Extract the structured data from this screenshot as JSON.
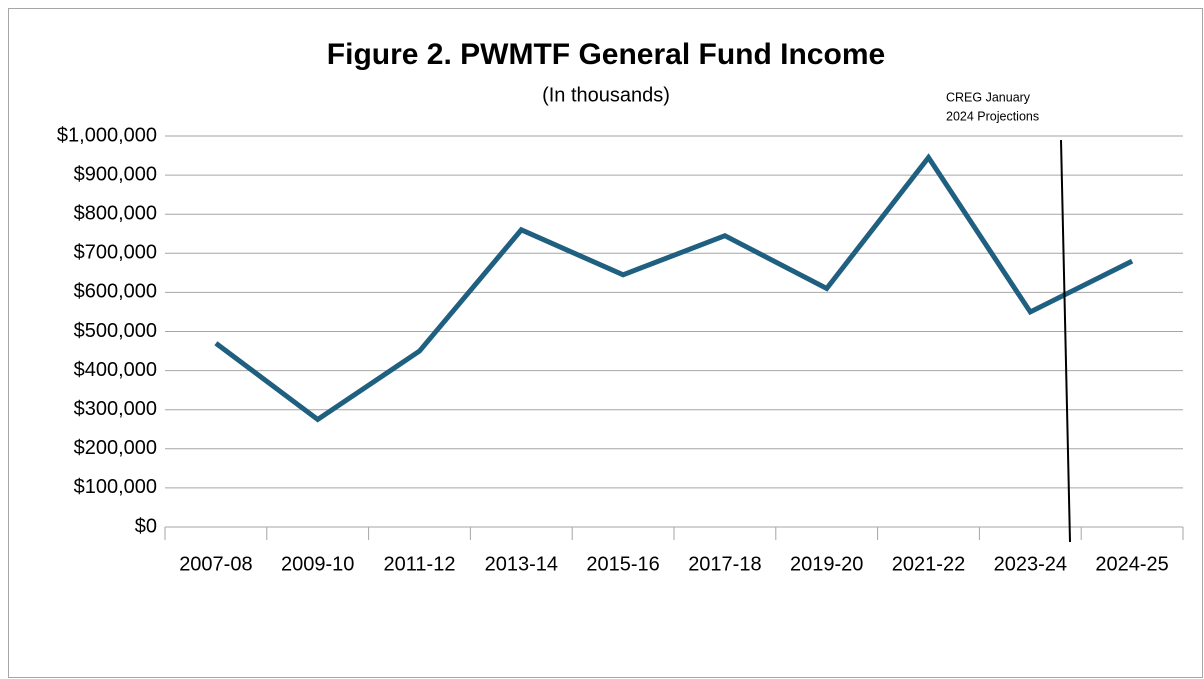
{
  "chart_data": {
    "type": "line",
    "title": "Figure 2. PWMTF General Fund Income",
    "subtitle": "(In thousands)",
    "annotation": [
      "CREG January",
      "2024 Projections"
    ],
    "categories": [
      "2007-08",
      "2009-10",
      "2011-12",
      "2013-14",
      "2015-16",
      "2017-18",
      "2019-20",
      "2021-22",
      "2023-24",
      "2024-25"
    ],
    "series": [
      {
        "name": "General Fund Income",
        "color": "#1f5f80",
        "values": [
          470000,
          275000,
          450000,
          760000,
          645000,
          745000,
          610000,
          945000,
          550000,
          680000
        ]
      }
    ],
    "ylim": [
      0,
      1000000
    ],
    "yticks": [
      {
        "value": 0,
        "label": "$0"
      },
      {
        "value": 100000,
        "label": "$100,000"
      },
      {
        "value": 200000,
        "label": "$200,000"
      },
      {
        "value": 300000,
        "label": "$300,000"
      },
      {
        "value": 400000,
        "label": "$400,000"
      },
      {
        "value": 500000,
        "label": "$500,000"
      },
      {
        "value": 600000,
        "label": "$600,000"
      },
      {
        "value": 700000,
        "label": "$700,000"
      },
      {
        "value": 800000,
        "label": "$800,000"
      },
      {
        "value": 900000,
        "label": "$900,000"
      },
      {
        "value": 1000000,
        "label": "$1,000,000"
      }
    ],
    "grid": true
  }
}
